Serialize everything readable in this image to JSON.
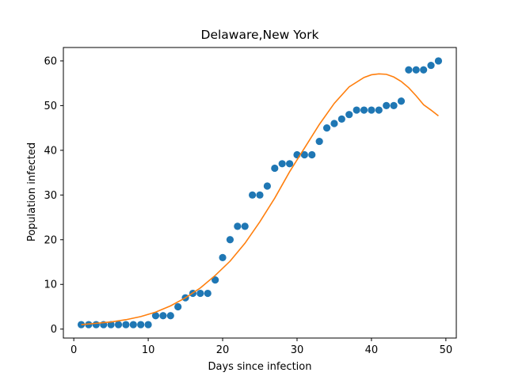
{
  "chart_data": {
    "type": "scatter",
    "title": "Delaware,New York",
    "xlabel": "Days since infection",
    "ylabel": "Population infected",
    "xlim": [
      -1.4,
      51.4
    ],
    "ylim": [
      -2.0,
      63.0
    ],
    "xticks": [
      0,
      10,
      20,
      30,
      40,
      50
    ],
    "yticks": [
      0,
      10,
      20,
      30,
      40,
      50,
      60
    ],
    "grid": false,
    "series": [
      {
        "kind": "scatter",
        "color": "#1f77b4",
        "x": [
          1,
          2,
          3,
          4,
          5,
          6,
          7,
          8,
          9,
          10,
          11,
          12,
          13,
          14,
          15,
          16,
          17,
          18,
          19,
          20,
          21,
          22,
          23,
          24,
          25,
          26,
          27,
          28,
          29,
          30,
          31,
          32,
          33,
          34,
          35,
          36,
          37,
          38,
          39,
          40,
          41,
          42,
          43,
          44,
          45,
          46,
          47,
          48,
          49
        ],
        "y": [
          1,
          1,
          1,
          1,
          1,
          1,
          1,
          1,
          1,
          1,
          3,
          3,
          3,
          5,
          7,
          8,
          8,
          8,
          11,
          16,
          20,
          23,
          23,
          30,
          30,
          32,
          36,
          37,
          37,
          39,
          39,
          39,
          42,
          45,
          46,
          47,
          48,
          49,
          49,
          49,
          49,
          50,
          50,
          51,
          58,
          58,
          58,
          59,
          60
        ]
      },
      {
        "kind": "line",
        "color": "#ff7f0e",
        "x": [
          1,
          3,
          5,
          7,
          9,
          11,
          13,
          15,
          17,
          19,
          21,
          23,
          25,
          27,
          29,
          31,
          33,
          35,
          37,
          39,
          40,
          41,
          42,
          43,
          44,
          45,
          46,
          47,
          48,
          49
        ],
        "y": [
          1.0,
          1.3,
          1.6,
          2.1,
          2.8,
          3.8,
          5.2,
          7.0,
          9.2,
          12.0,
          15.2,
          19.2,
          24.0,
          29.3,
          35.2,
          40.5,
          45.8,
          50.5,
          54.2,
          56.3,
          56.9,
          57.1,
          57.0,
          56.4,
          55.4,
          54.0,
          52.2,
          50.2,
          49.0,
          47.7
        ]
      }
    ]
  }
}
